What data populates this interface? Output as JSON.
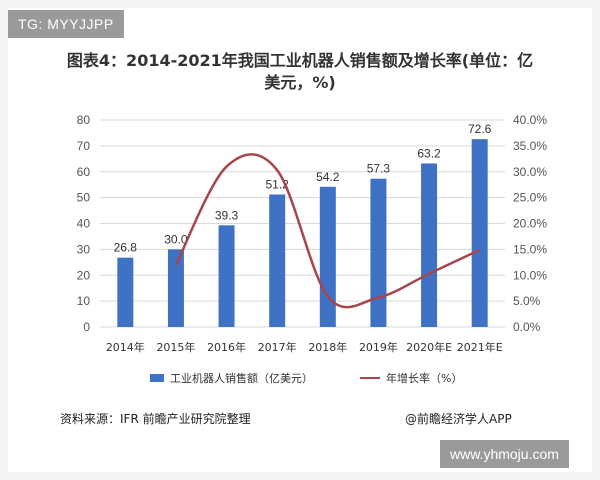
{
  "watermark_tag": "TG: MYYJJPP",
  "site_watermark": "www.yhmoju.com",
  "chart_data": {
    "type": "bar",
    "title": "图表4：2014-2021年我国工业机器人销售额及增长率(单位：亿美元，%)",
    "categories": [
      "2014年",
      "2015年",
      "2016年",
      "2017年",
      "2018年",
      "2019年",
      "2020年E",
      "2021年E"
    ],
    "series": [
      {
        "name": "工业机器人销售额（亿美元）",
        "type": "bar",
        "axis": "left",
        "color": "#3f72c4",
        "values": [
          26.8,
          30.0,
          39.3,
          51.2,
          54.2,
          57.3,
          63.2,
          72.6
        ],
        "labels": [
          "26.8",
          "30.0",
          "39.3",
          "51.2",
          "54.2",
          "57.3",
          "63.2",
          "72.6"
        ]
      },
      {
        "name": "年增长率（%）",
        "type": "line",
        "axis": "right",
        "color": "#a8454a",
        "values": [
          null,
          12.0,
          31.0,
          30.3,
          5.9,
          5.7,
          10.3,
          14.9
        ]
      }
    ],
    "y_left": {
      "min": 0,
      "max": 80,
      "ticks": [
        "0",
        "10",
        "20",
        "30",
        "40",
        "50",
        "60",
        "70",
        "80"
      ]
    },
    "y_right": {
      "min": 0,
      "max": 40,
      "ticks": [
        "0.0%",
        "5.0%",
        "10.0%",
        "15.0%",
        "20.0%",
        "25.0%",
        "30.0%",
        "35.0%",
        "40.0%"
      ]
    },
    "grid": true,
    "legend": "bottom"
  },
  "source": "资料来源：IFR 前瞻产业研究院整理",
  "credit": "@前瞻经济学人APP"
}
